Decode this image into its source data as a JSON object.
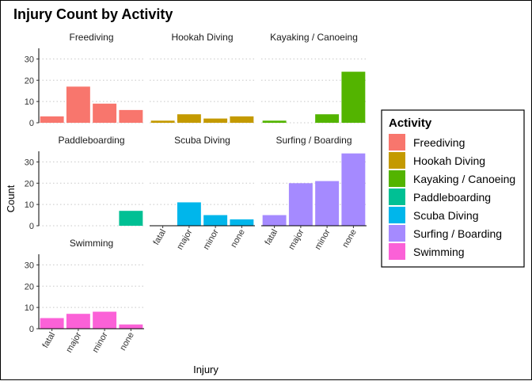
{
  "chart_data": {
    "type": "bar",
    "title": "Injury Count by Activity",
    "xlabel": "Injury",
    "ylabel": "Count",
    "categories": [
      "fatal",
      "major",
      "minor",
      "none"
    ],
    "ylim": [
      0,
      35
    ],
    "yticks": [
      0,
      10,
      20,
      30
    ],
    "grid": "horizontal dotted",
    "legend": {
      "title": "Activity",
      "position": "right"
    },
    "series": [
      {
        "name": "Freediving",
        "color": "#F8766D",
        "values": [
          3,
          17,
          9,
          6
        ]
      },
      {
        "name": "Hookah Diving",
        "color": "#C49A00",
        "values": [
          1,
          4,
          2,
          3
        ]
      },
      {
        "name": "Kayaking / Canoeing",
        "color": "#53B400",
        "values": [
          1,
          0,
          4,
          24
        ]
      },
      {
        "name": "Paddleboarding",
        "color": "#00C094",
        "values": [
          0,
          0,
          0,
          7
        ]
      },
      {
        "name": "Scuba Diving",
        "color": "#00B6EB",
        "values": [
          0,
          11,
          5,
          3
        ]
      },
      {
        "name": "Surfing / Boarding",
        "color": "#A58AFF",
        "values": [
          5,
          20,
          21,
          34
        ]
      },
      {
        "name": "Swimming",
        "color": "#FB61D7",
        "values": [
          5,
          7,
          8,
          2
        ]
      }
    ]
  }
}
